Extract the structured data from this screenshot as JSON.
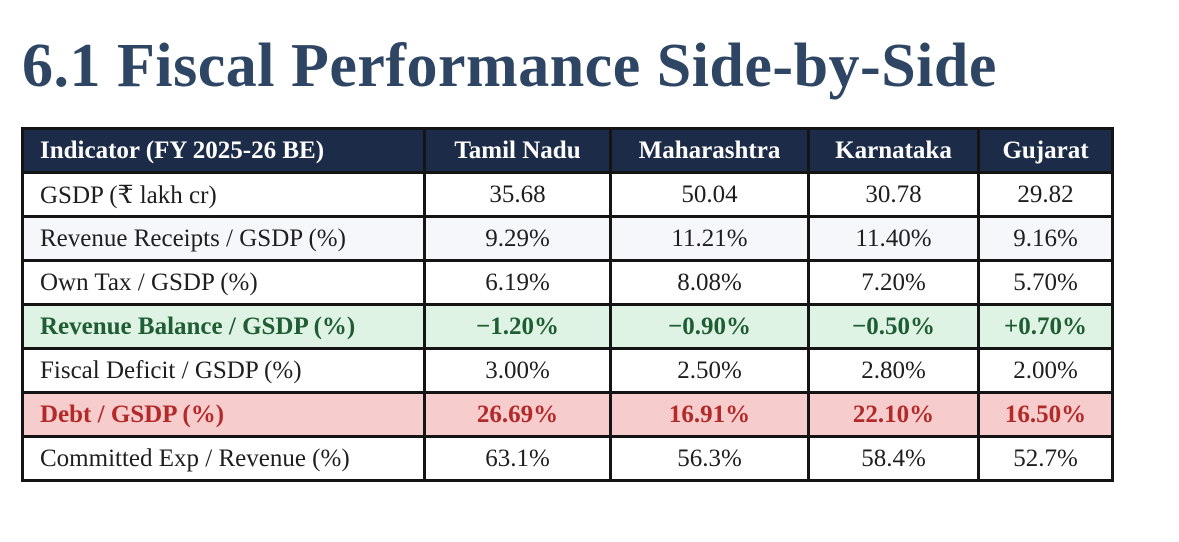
{
  "section_title": "6.1  Fiscal Performance Side-by-Side",
  "table": {
    "headers": [
      "Indicator (FY 2025-26 BE)",
      "Tamil Nadu",
      "Maharashtra",
      "Karnataka",
      "Gujarat"
    ],
    "rows": [
      {
        "label": "GSDP (₹ lakh cr)",
        "values": [
          "35.68",
          "50.04",
          "30.78",
          "29.82"
        ]
      },
      {
        "label": "Revenue Receipts / GSDP (%)",
        "values": [
          "9.29%",
          "11.21%",
          "11.40%",
          "9.16%"
        ]
      },
      {
        "label": "Own Tax / GSDP (%)",
        "values": [
          "6.19%",
          "8.08%",
          "7.20%",
          "5.70%"
        ]
      },
      {
        "label": "Revenue Balance / GSDP (%)",
        "values": [
          "−1.20%",
          "−0.90%",
          "−0.50%",
          "+0.70%"
        ]
      },
      {
        "label": "Fiscal Deficit / GSDP (%)",
        "values": [
          "3.00%",
          "2.50%",
          "2.80%",
          "2.00%"
        ]
      },
      {
        "label": "Debt / GSDP (%)",
        "values": [
          "26.69%",
          "16.91%",
          "22.10%",
          "16.50%"
        ]
      },
      {
        "label": "Committed Exp / Revenue (%)",
        "values": [
          "63.1%",
          "56.3%",
          "58.4%",
          "52.7%"
        ]
      }
    ]
  },
  "colors": {
    "title": "#2e4564",
    "header_bg": "#1c2b47",
    "highlight_green_bg": "#dff3e4",
    "highlight_green_text": "#1f5e34",
    "highlight_red_bg": "#f6cccc",
    "highlight_red_text": "#b22a2a"
  }
}
